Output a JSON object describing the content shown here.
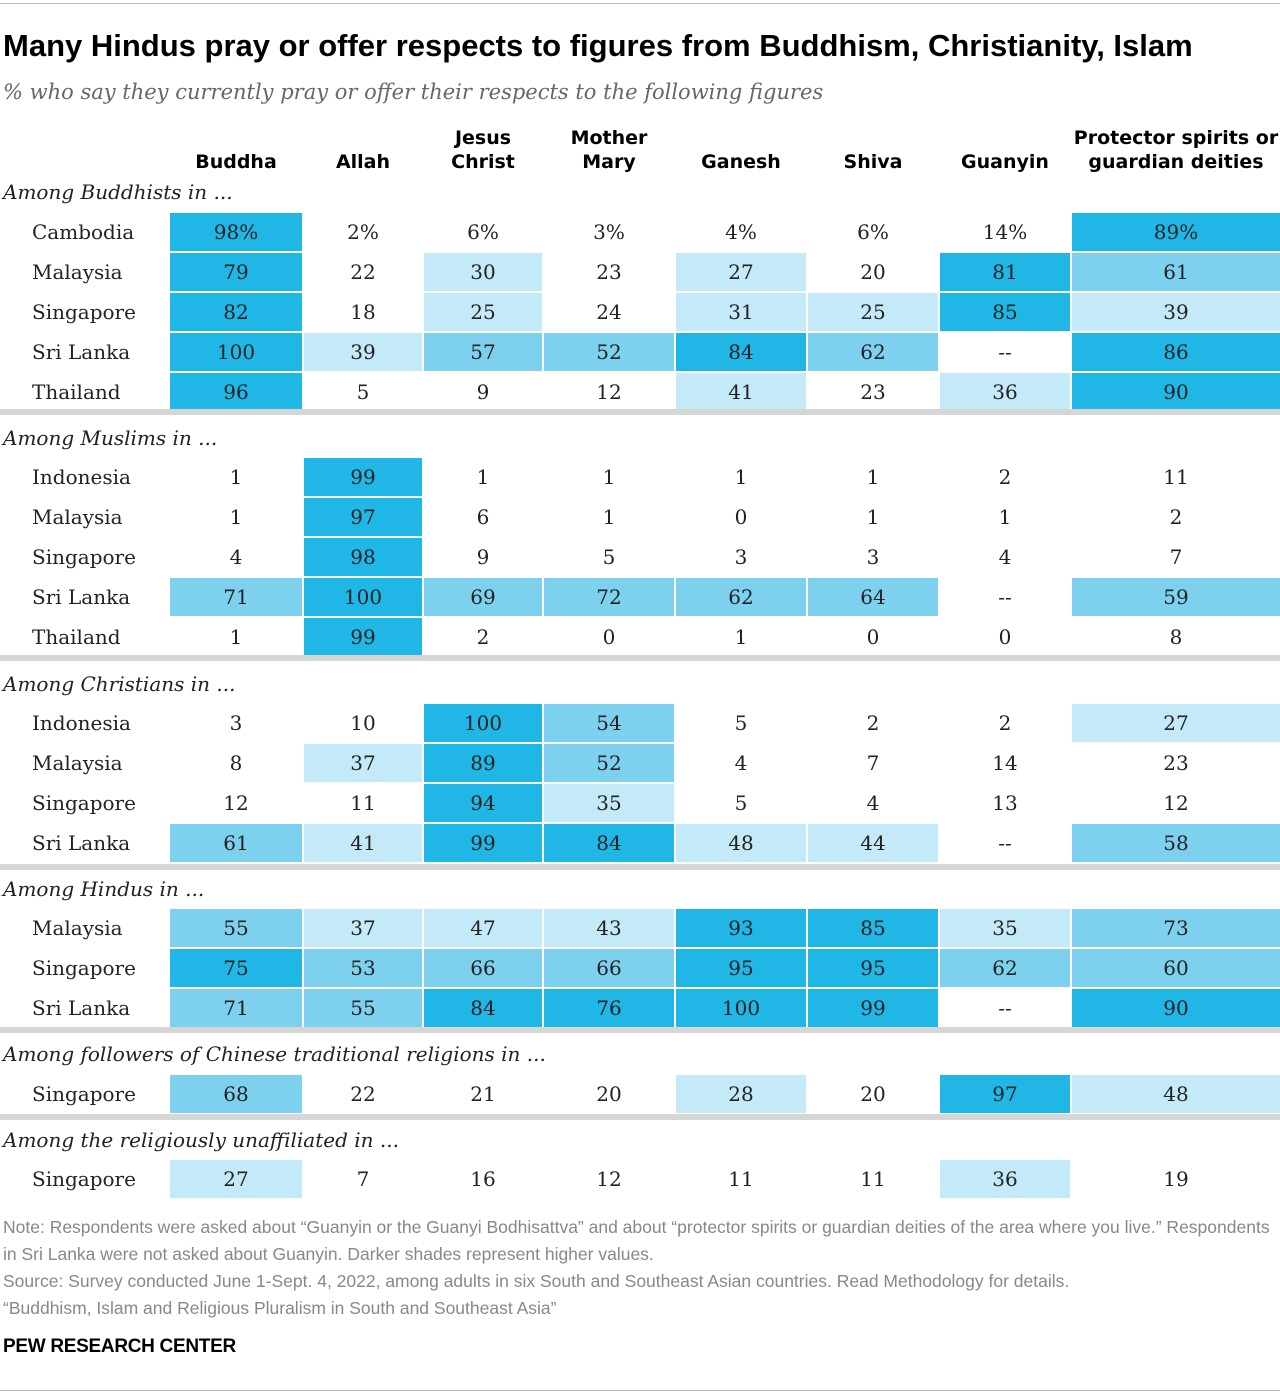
{
  "title": "Many Hindus pray or offer respects to figures from Buddhism, Christianity, Islam",
  "subtitle": "% who say they currently pray or offer their respects to the following figures",
  "chart_data": {
    "type": "table",
    "columns": [
      "Buddha",
      "Allah",
      "Jesus\nChrist",
      "Mother\nMary",
      "Ganesh",
      "Shiva",
      "Guanyin",
      "Protector spirits or\nguardian deities"
    ],
    "groups": [
      {
        "label": "Among Buddhists in ...",
        "rows": [
          {
            "label": "Cambodia",
            "values": [
              98,
              2,
              6,
              3,
              4,
              6,
              14,
              89
            ],
            "display": [
              "98%",
              "2%",
              "6%",
              "3%",
              "4%",
              "6%",
              "14%",
              "89%"
            ]
          },
          {
            "label": "Malaysia",
            "values": [
              79,
              22,
              30,
              23,
              27,
              20,
              81,
              61
            ],
            "display": [
              "79",
              "22",
              "30",
              "23",
              "27",
              "20",
              "81",
              "61"
            ]
          },
          {
            "label": "Singapore",
            "values": [
              82,
              18,
              25,
              24,
              31,
              25,
              85,
              39
            ],
            "display": [
              "82",
              "18",
              "25",
              "24",
              "31",
              "25",
              "85",
              "39"
            ]
          },
          {
            "label": "Sri Lanka",
            "values": [
              100,
              39,
              57,
              52,
              84,
              62,
              null,
              86
            ],
            "display": [
              "100",
              "39",
              "57",
              "52",
              "84",
              "62",
              "--",
              "86"
            ]
          },
          {
            "label": "Thailand",
            "values": [
              96,
              5,
              9,
              12,
              41,
              23,
              36,
              90
            ],
            "display": [
              "96",
              "5",
              "9",
              "12",
              "41",
              "23",
              "36",
              "90"
            ]
          }
        ]
      },
      {
        "label": "Among Muslims in ...",
        "rows": [
          {
            "label": "Indonesia",
            "values": [
              1,
              99,
              1,
              1,
              1,
              1,
              2,
              11
            ],
            "display": [
              "1",
              "99",
              "1",
              "1",
              "1",
              "1",
              "2",
              "11"
            ]
          },
          {
            "label": "Malaysia",
            "values": [
              1,
              97,
              6,
              1,
              0,
              1,
              1,
              2
            ],
            "display": [
              "1",
              "97",
              "6",
              "1",
              "0",
              "1",
              "1",
              "2"
            ]
          },
          {
            "label": "Singapore",
            "values": [
              4,
              98,
              9,
              5,
              3,
              3,
              4,
              7
            ],
            "display": [
              "4",
              "98",
              "9",
              "5",
              "3",
              "3",
              "4",
              "7"
            ]
          },
          {
            "label": "Sri Lanka",
            "values": [
              71,
              100,
              69,
              72,
              62,
              64,
              null,
              59
            ],
            "display": [
              "71",
              "100",
              "69",
              "72",
              "62",
              "64",
              "--",
              "59"
            ]
          },
          {
            "label": "Thailand",
            "values": [
              1,
              99,
              2,
              0,
              1,
              0,
              0,
              8
            ],
            "display": [
              "1",
              "99",
              "2",
              "0",
              "1",
              "0",
              "0",
              "8"
            ]
          }
        ]
      },
      {
        "label": "Among Christians in ...",
        "rows": [
          {
            "label": "Indonesia",
            "values": [
              3,
              10,
              100,
              54,
              5,
              2,
              2,
              27
            ],
            "display": [
              "3",
              "10",
              "100",
              "54",
              "5",
              "2",
              "2",
              "27"
            ]
          },
          {
            "label": "Malaysia",
            "values": [
              8,
              37,
              89,
              52,
              4,
              7,
              14,
              23
            ],
            "display": [
              "8",
              "37",
              "89",
              "52",
              "4",
              "7",
              "14",
              "23"
            ]
          },
          {
            "label": "Singapore",
            "values": [
              12,
              11,
              94,
              35,
              5,
              4,
              13,
              12
            ],
            "display": [
              "12",
              "11",
              "94",
              "35",
              "5",
              "4",
              "13",
              "12"
            ]
          },
          {
            "label": "Sri Lanka",
            "values": [
              61,
              41,
              99,
              84,
              48,
              44,
              null,
              58
            ],
            "display": [
              "61",
              "41",
              "99",
              "84",
              "48",
              "44",
              "--",
              "58"
            ]
          }
        ]
      },
      {
        "label": "Among Hindus in ...",
        "rows": [
          {
            "label": "Malaysia",
            "values": [
              55,
              37,
              47,
              43,
              93,
              85,
              35,
              73
            ],
            "display": [
              "55",
              "37",
              "47",
              "43",
              "93",
              "85",
              "35",
              "73"
            ]
          },
          {
            "label": "Singapore",
            "values": [
              75,
              53,
              66,
              66,
              95,
              95,
              62,
              60
            ],
            "display": [
              "75",
              "53",
              "66",
              "66",
              "95",
              "95",
              "62",
              "60"
            ]
          },
          {
            "label": "Sri Lanka",
            "values": [
              71,
              55,
              84,
              76,
              100,
              99,
              null,
              90
            ],
            "display": [
              "71",
              "55",
              "84",
              "76",
              "100",
              "99",
              "--",
              "90"
            ]
          }
        ]
      },
      {
        "label": "Among followers of Chinese traditional religions in ...",
        "rows": [
          {
            "label": "Singapore",
            "values": [
              68,
              22,
              21,
              20,
              28,
              20,
              97,
              48
            ],
            "display": [
              "68",
              "22",
              "21",
              "20",
              "28",
              "20",
              "97",
              "48"
            ]
          }
        ]
      },
      {
        "label": "Among the religiously unaffiliated in ...",
        "rows": [
          {
            "label": "Singapore",
            "values": [
              27,
              7,
              16,
              12,
              11,
              11,
              36,
              19
            ],
            "display": [
              "27",
              "7",
              "16",
              "12",
              "11",
              "11",
              "36",
              "19"
            ]
          }
        ]
      }
    ],
    "colors": {
      "high": "#20b6e6",
      "mid": "#7ed0ef",
      "low": "#c4e9f8"
    }
  },
  "notes": {
    "note": "Note: Respondents were asked about “Guanyin or the Guanyi Bodhisattva” and about “protector spirits or guardian deities of the area where you live.” Respondents in Sri Lanka were not asked about Guanyin. Darker shades represent higher values.",
    "source": "Source: Survey conducted June 1-Sept. 4, 2022, among adults in six South and Southeast Asian countries. Read Methodology for details.",
    "report": "“Buddhism, Islam and Religious Pluralism in South and Southeast Asia”"
  },
  "brand": "PEW RESEARCH CENTER"
}
